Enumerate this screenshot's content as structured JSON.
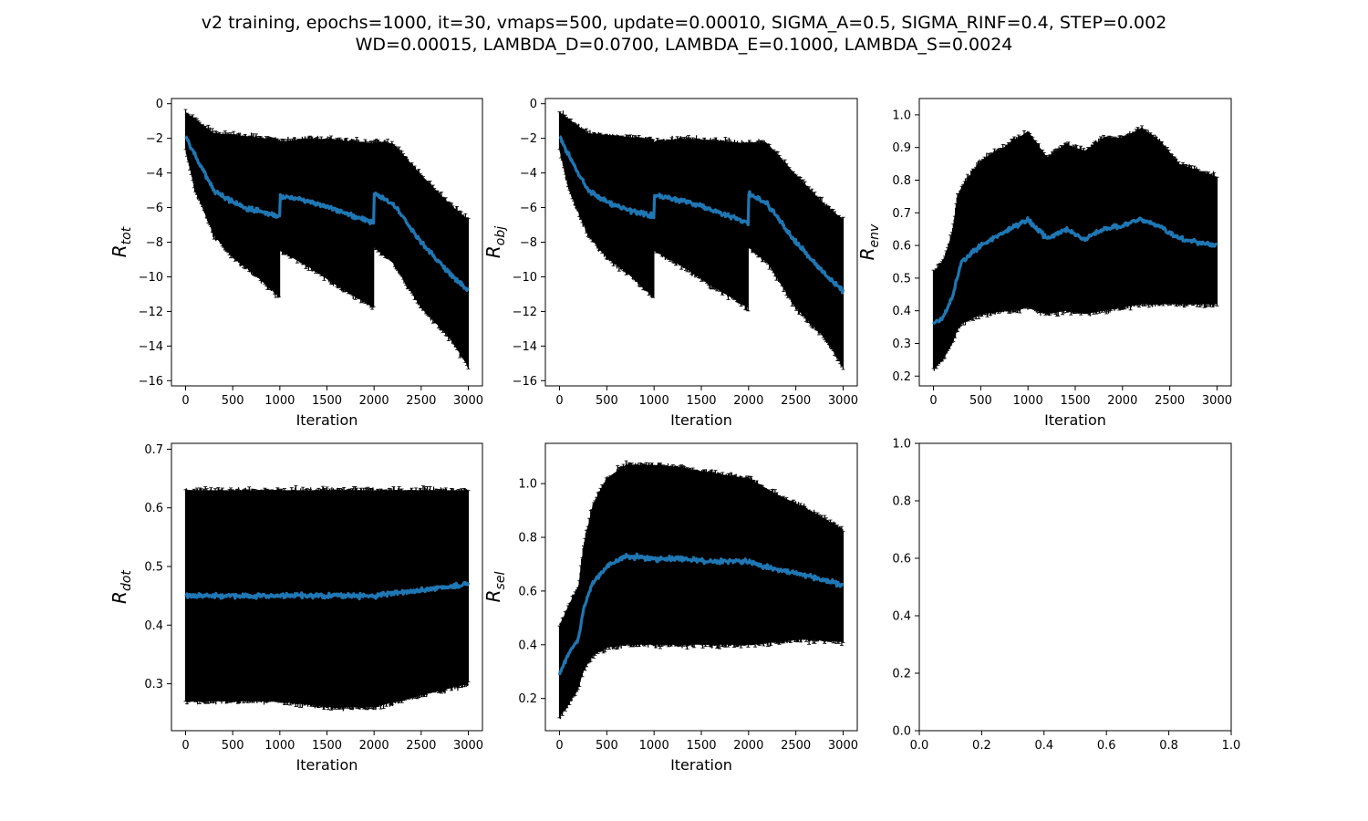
{
  "suptitle": {
    "line1": "v2 training, epochs=1000, it=30, vmaps=500, update=0.00010, SIGMA_A=0.5, SIGMA_RINF=0.4, STEP=0.002",
    "line2": "WD=0.00015, LAMBDA_D=0.0700, LAMBDA_E=0.1000, LAMBDA_S=0.0024"
  },
  "colors": {
    "mean": "#1f77b4",
    "errorbar": "#000000"
  },
  "chart_data": [
    {
      "type": "line",
      "id": "r_tot",
      "ylabel_main": "R",
      "ylabel_sub": "tot",
      "xlabel": "Iteration",
      "xlim": [
        -150,
        3150
      ],
      "ylim": [
        -16.3,
        0.3
      ],
      "xticks": [
        0,
        500,
        1000,
        1500,
        2000,
        2500,
        3000
      ],
      "yticks": [
        0,
        -2,
        -4,
        -6,
        -8,
        -10,
        -12,
        -14,
        -16
      ],
      "ytick_labels": [
        "0",
        "−2",
        "−4",
        "−6",
        "−8",
        "−10",
        "−12",
        "−14",
        "−16"
      ],
      "series": [
        {
          "x": [
            0,
            100,
            300,
            500,
            700,
            999,
            1000,
            1300,
            1600,
            1999,
            2000,
            2200,
            2500,
            2800,
            3000
          ],
          "mean": [
            -1.9,
            -3.0,
            -5.0,
            -5.7,
            -6.1,
            -6.5,
            -5.3,
            -5.6,
            -6.1,
            -6.9,
            -5.2,
            -5.8,
            -8.0,
            -9.8,
            -10.8
          ],
          "upper": [
            -0.5,
            -0.9,
            -1.7,
            -1.8,
            -1.9,
            -2.1,
            -2.2,
            -2.0,
            -2.1,
            -2.3,
            -2.2,
            -2.3,
            -4.1,
            -5.8,
            -6.7
          ],
          "lower": [
            -2.7,
            -5.0,
            -7.6,
            -8.9,
            -9.7,
            -11.2,
            -8.5,
            -9.4,
            -10.5,
            -11.8,
            -8.3,
            -9.2,
            -11.8,
            -13.5,
            -15.2
          ]
        }
      ]
    },
    {
      "type": "line",
      "id": "r_obj",
      "ylabel_main": "R",
      "ylabel_sub": "obj",
      "xlabel": "Iteration",
      "xlim": [
        -150,
        3150
      ],
      "ylim": [
        -16.3,
        0.3
      ],
      "xticks": [
        0,
        500,
        1000,
        1500,
        2000,
        2500,
        3000
      ],
      "yticks": [
        0,
        -2,
        -4,
        -6,
        -8,
        -10,
        -12,
        -14,
        -16
      ],
      "ytick_labels": [
        "0",
        "−2",
        "−4",
        "−6",
        "−8",
        "−10",
        "−12",
        "−14",
        "−16"
      ],
      "series": [
        {
          "x": [
            0,
            100,
            300,
            500,
            700,
            999,
            1000,
            1300,
            1600,
            1999,
            2000,
            2200,
            2500,
            2800,
            3000
          ],
          "mean": [
            -1.9,
            -3.0,
            -5.0,
            -5.7,
            -6.1,
            -6.5,
            -5.3,
            -5.6,
            -6.1,
            -6.9,
            -5.2,
            -5.8,
            -8.0,
            -9.8,
            -10.8
          ],
          "upper": [
            -0.5,
            -0.9,
            -1.7,
            -1.8,
            -1.9,
            -2.1,
            -2.2,
            -2.0,
            -2.1,
            -2.3,
            -2.2,
            -2.3,
            -4.1,
            -5.8,
            -6.7
          ],
          "lower": [
            -2.7,
            -5.0,
            -7.6,
            -8.9,
            -9.7,
            -11.2,
            -8.5,
            -9.4,
            -10.5,
            -11.8,
            -8.3,
            -9.2,
            -11.8,
            -13.5,
            -15.2
          ]
        }
      ]
    },
    {
      "type": "line",
      "id": "r_env",
      "ylabel_main": "R",
      "ylabel_sub": "env",
      "xlabel": "Iteration",
      "xlim": [
        -150,
        3150
      ],
      "ylim": [
        0.17,
        1.05
      ],
      "xticks": [
        0,
        500,
        1000,
        1500,
        2000,
        2500,
        3000
      ],
      "yticks": [
        0.2,
        0.3,
        0.4,
        0.5,
        0.6,
        0.7,
        0.8,
        0.9,
        1.0
      ],
      "ytick_labels": [
        "0.2",
        "0.3",
        "0.4",
        "0.5",
        "0.6",
        "0.7",
        "0.8",
        "0.9",
        "1.0"
      ],
      "series": [
        {
          "x": [
            0,
            100,
            200,
            250,
            300,
            500,
            800,
            1000,
            1200,
            1400,
            1600,
            1800,
            2000,
            2200,
            2400,
            2600,
            3000
          ],
          "mean": [
            0.36,
            0.38,
            0.44,
            0.5,
            0.55,
            0.6,
            0.65,
            0.68,
            0.62,
            0.65,
            0.62,
            0.65,
            0.66,
            0.68,
            0.66,
            0.62,
            0.6
          ],
          "upper": [
            0.52,
            0.55,
            0.64,
            0.75,
            0.78,
            0.86,
            0.91,
            0.95,
            0.87,
            0.91,
            0.89,
            0.93,
            0.93,
            0.96,
            0.92,
            0.85,
            0.81
          ],
          "lower": [
            0.22,
            0.25,
            0.3,
            0.34,
            0.36,
            0.39,
            0.4,
            0.41,
            0.39,
            0.4,
            0.39,
            0.4,
            0.41,
            0.42,
            0.42,
            0.42,
            0.42
          ]
        }
      ]
    },
    {
      "type": "line",
      "id": "r_dot",
      "ylabel_main": "R",
      "ylabel_sub": "dot",
      "xlabel": "Iteration",
      "xlim": [
        -150,
        3150
      ],
      "ylim": [
        0.22,
        0.71
      ],
      "xticks": [
        0,
        500,
        1000,
        1500,
        2000,
        2500,
        3000
      ],
      "yticks": [
        0.3,
        0.4,
        0.5,
        0.6,
        0.7
      ],
      "ytick_labels": [
        "0.3",
        "0.4",
        "0.5",
        "0.6",
        "0.7"
      ],
      "series": [
        {
          "x": [
            0,
            500,
            1000,
            1500,
            2000,
            2500,
            3000
          ],
          "mean": [
            0.45,
            0.45,
            0.45,
            0.45,
            0.45,
            0.46,
            0.47
          ],
          "upper": [
            0.63,
            0.63,
            0.63,
            0.63,
            0.63,
            0.63,
            0.63
          ],
          "lower": [
            0.27,
            0.27,
            0.27,
            0.26,
            0.26,
            0.28,
            0.3
          ]
        }
      ]
    },
    {
      "type": "line",
      "id": "r_sel",
      "ylabel_main": "R",
      "ylabel_sub": "sel",
      "xlabel": "Iteration",
      "xlim": [
        -150,
        3150
      ],
      "ylim": [
        0.08,
        1.15
      ],
      "xticks": [
        0,
        500,
        1000,
        1500,
        2000,
        2500,
        3000
      ],
      "yticks": [
        0.2,
        0.4,
        0.6,
        0.8,
        1.0
      ],
      "ytick_labels": [
        "0.2",
        "0.4",
        "0.6",
        "0.8",
        "1.0"
      ],
      "series": [
        {
          "x": [
            0,
            100,
            200,
            250,
            350,
            500,
            700,
            1000,
            1300,
            1600,
            2000,
            2300,
            2600,
            3000
          ],
          "mean": [
            0.29,
            0.37,
            0.42,
            0.53,
            0.63,
            0.69,
            0.73,
            0.72,
            0.72,
            0.71,
            0.71,
            0.68,
            0.66,
            0.62
          ],
          "upper": [
            0.47,
            0.55,
            0.62,
            0.76,
            0.92,
            1.02,
            1.07,
            1.07,
            1.06,
            1.04,
            1.02,
            0.96,
            0.91,
            0.83
          ],
          "lower": [
            0.13,
            0.18,
            0.24,
            0.3,
            0.36,
            0.39,
            0.4,
            0.4,
            0.4,
            0.4,
            0.4,
            0.41,
            0.42,
            0.41
          ]
        }
      ]
    },
    {
      "type": "empty",
      "id": "empty",
      "xlim": [
        0,
        1
      ],
      "ylim": [
        0,
        1
      ],
      "xticks": [
        0,
        0.2,
        0.4,
        0.6,
        0.8,
        1.0
      ],
      "yticks": [
        0,
        0.2,
        0.4,
        0.6,
        0.8,
        1.0
      ],
      "xtick_labels": [
        "0.0",
        "0.2",
        "0.4",
        "0.6",
        "0.8",
        "1.0"
      ],
      "ytick_labels": [
        "0.0",
        "0.2",
        "0.4",
        "0.6",
        "0.8",
        "1.0"
      ],
      "series": []
    }
  ]
}
